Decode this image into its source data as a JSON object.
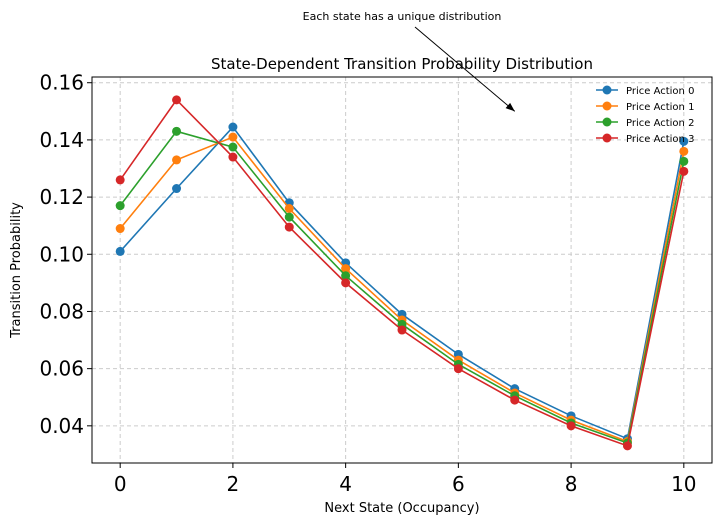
{
  "chart_data": {
    "type": "line",
    "title": "State-Dependent Transition Probability Distribution",
    "xlabel": "Next State (Occupancy)",
    "ylabel": "Transition Probability",
    "xlim": [
      -0.5,
      10.5
    ],
    "ylim": [
      0.027,
      0.162
    ],
    "xticks": [
      0,
      2,
      4,
      6,
      8,
      10
    ],
    "yticks": [
      0.04,
      0.06,
      0.08,
      0.1,
      0.12,
      0.14,
      0.16
    ],
    "ytick_labels": [
      "0.04",
      "0.06",
      "0.08",
      "0.10",
      "0.12",
      "0.14",
      "0.16"
    ],
    "grid": true,
    "legend_position": "top-right",
    "annotation": {
      "text": "Each state has a unique distribution",
      "arrow_target": [
        7,
        0.15
      ]
    },
    "x": [
      0,
      1,
      2,
      3,
      4,
      5,
      6,
      7,
      8,
      9,
      10
    ],
    "series": [
      {
        "name": "Price Action 0",
        "color": "#1f77b4",
        "values": [
          0.101,
          0.123,
          0.1445,
          0.118,
          0.097,
          0.079,
          0.065,
          0.053,
          0.0435,
          0.0355,
          0.1395
        ]
      },
      {
        "name": "Price Action 1",
        "color": "#ff7f0e",
        "values": [
          0.109,
          0.133,
          0.141,
          0.116,
          0.095,
          0.077,
          0.063,
          0.0515,
          0.042,
          0.0345,
          0.136
        ]
      },
      {
        "name": "Price Action 2",
        "color": "#2ca02c",
        "values": [
          0.117,
          0.143,
          0.1375,
          0.113,
          0.0925,
          0.0755,
          0.0615,
          0.0505,
          0.041,
          0.034,
          0.1325
        ]
      },
      {
        "name": "Price Action 3",
        "color": "#d62728",
        "values": [
          0.126,
          0.154,
          0.134,
          0.1095,
          0.09,
          0.0735,
          0.06,
          0.049,
          0.04,
          0.033,
          0.129
        ]
      }
    ]
  }
}
